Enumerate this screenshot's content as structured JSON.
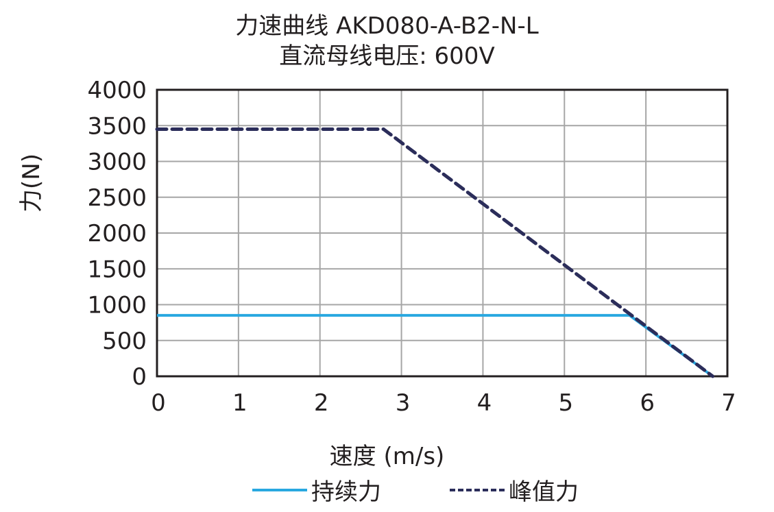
{
  "chart_data": {
    "type": "line",
    "title": "力速曲线 AKD080-A-B2-N-L",
    "subtitle": "直流母线电压: 600V",
    "xlabel": "速度 (m/s)",
    "ylabel": "力(N)",
    "xlim": [
      0,
      7
    ],
    "ylim": [
      0,
      4000
    ],
    "x_ticks": [
      "0",
      "1",
      "2",
      "3",
      "4",
      "5",
      "6",
      "7"
    ],
    "y_ticks": [
      "0",
      "500",
      "1000",
      "1500",
      "2000",
      "2500",
      "3000",
      "3500",
      "4000"
    ],
    "grid": true,
    "legend_position": "bottom",
    "series": [
      {
        "name": "持续力",
        "style": "solid",
        "color": "#29a8e0",
        "x": [
          0,
          5.8,
          6.82
        ],
        "y": [
          850,
          850,
          0
        ]
      },
      {
        "name": "峰值力",
        "style": "dashed",
        "color": "#2b2d5a",
        "x": [
          0,
          2.78,
          6.82
        ],
        "y": [
          3450,
          3450,
          0
        ]
      }
    ]
  }
}
